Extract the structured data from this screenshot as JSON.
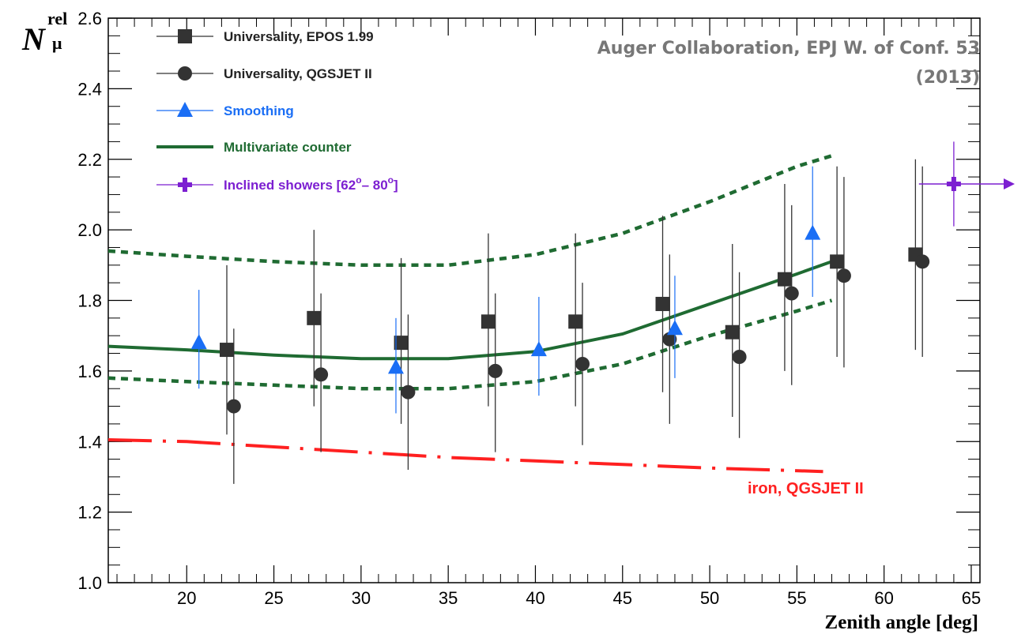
{
  "chart_data": {
    "type": "scatter",
    "title": "",
    "xlabel": "Zenith angle [deg]",
    "ylabel_main": "N",
    "ylabel_sup": "rel",
    "ylabel_sub": "μ",
    "xlim": [
      15.5,
      65.5
    ],
    "ylim": [
      1.0,
      2.6
    ],
    "x_ticks": [
      20,
      25,
      30,
      35,
      40,
      45,
      50,
      55,
      60,
      65
    ],
    "y_ticks": [
      1.0,
      1.2,
      1.4,
      1.6,
      1.8,
      2.0,
      2.2,
      2.4,
      2.6
    ],
    "grid": false,
    "legend_position": "top-left",
    "credit": [
      "Auger Collaboration, EPJ W. of Conf. 53",
      "(2013)"
    ],
    "annotations": [
      {
        "text": "iron, QGSJET II",
        "x": 55,
        "y": 1.29,
        "color": "#ff2020"
      }
    ],
    "series": [
      {
        "name": "Universality, EPOS 1.99",
        "marker": "square",
        "color": "#333333",
        "points": [
          {
            "x": 22.3,
            "y": 1.66,
            "lo": 1.42,
            "hi": 1.9
          },
          {
            "x": 27.3,
            "y": 1.75,
            "lo": 1.5,
            "hi": 2.0
          },
          {
            "x": 32.3,
            "y": 1.68,
            "lo": 1.45,
            "hi": 1.92
          },
          {
            "x": 37.3,
            "y": 1.74,
            "lo": 1.5,
            "hi": 1.99
          },
          {
            "x": 42.3,
            "y": 1.74,
            "lo": 1.5,
            "hi": 1.99
          },
          {
            "x": 47.3,
            "y": 1.79,
            "lo": 1.54,
            "hi": 2.04
          },
          {
            "x": 51.3,
            "y": 1.71,
            "lo": 1.47,
            "hi": 1.96
          },
          {
            "x": 54.3,
            "y": 1.86,
            "lo": 1.6,
            "hi": 2.13
          },
          {
            "x": 57.3,
            "y": 1.91,
            "lo": 1.64,
            "hi": 2.18
          },
          {
            "x": 61.8,
            "y": 1.93,
            "lo": 1.66,
            "hi": 2.2
          }
        ]
      },
      {
        "name": "Universality, QGSJET II",
        "marker": "circle",
        "color": "#333333",
        "points": [
          {
            "x": 22.7,
            "y": 1.5,
            "lo": 1.28,
            "hi": 1.72
          },
          {
            "x": 27.7,
            "y": 1.59,
            "lo": 1.37,
            "hi": 1.82
          },
          {
            "x": 32.7,
            "y": 1.54,
            "lo": 1.32,
            "hi": 1.76
          },
          {
            "x": 37.7,
            "y": 1.6,
            "lo": 1.37,
            "hi": 1.82
          },
          {
            "x": 42.7,
            "y": 1.62,
            "lo": 1.39,
            "hi": 1.85
          },
          {
            "x": 47.7,
            "y": 1.69,
            "lo": 1.45,
            "hi": 1.93
          },
          {
            "x": 51.7,
            "y": 1.64,
            "lo": 1.41,
            "hi": 1.88
          },
          {
            "x": 54.7,
            "y": 1.82,
            "lo": 1.56,
            "hi": 2.07
          },
          {
            "x": 57.7,
            "y": 1.87,
            "lo": 1.61,
            "hi": 2.15
          },
          {
            "x": 62.2,
            "y": 1.91,
            "lo": 1.64,
            "hi": 2.18
          }
        ]
      },
      {
        "name": "Smoothing",
        "marker": "triangle",
        "color": "#1a6ef5",
        "points": [
          {
            "x": 20.7,
            "y": 1.68,
            "lo": 1.55,
            "hi": 1.83
          },
          {
            "x": 32.0,
            "y": 1.61,
            "lo": 1.48,
            "hi": 1.75
          },
          {
            "x": 40.2,
            "y": 1.66,
            "lo": 1.53,
            "hi": 1.81
          },
          {
            "x": 48.0,
            "y": 1.72,
            "lo": 1.58,
            "hi": 1.87
          },
          {
            "x": 55.9,
            "y": 1.99,
            "lo": 1.81,
            "hi": 2.18
          }
        ]
      },
      {
        "name": "Multivariate counter",
        "marker": "line",
        "color": "#1f6b32",
        "x": [
          15.5,
          20,
          25,
          30,
          35,
          40,
          45,
          50,
          55,
          57
        ],
        "y": [
          1.67,
          1.66,
          1.645,
          1.635,
          1.635,
          1.655,
          1.705,
          1.79,
          1.875,
          1.91
        ],
        "band_upper": [
          1.94,
          1.925,
          1.91,
          1.9,
          1.9,
          1.93,
          1.99,
          2.08,
          2.18,
          2.21
        ],
        "band_lower": [
          1.58,
          1.57,
          1.56,
          1.55,
          1.55,
          1.57,
          1.62,
          1.7,
          1.77,
          1.8
        ]
      },
      {
        "name": "Inclined showers [62°– 80°]",
        "name_parts": [
          "Inclined showers [62",
          "o",
          "– 80",
          "o",
          "]"
        ],
        "marker": "cross",
        "color": "#7c1fd1",
        "points": [
          {
            "x": 64.0,
            "y": 2.13,
            "lo": 2.01,
            "hi": 2.25,
            "xlo": 62.0,
            "arrow": true
          }
        ]
      },
      {
        "name": "iron, QGSJET II",
        "marker": "dashdot",
        "color": "#ff2020",
        "x": [
          15.5,
          20,
          25,
          30,
          35,
          40,
          45,
          50,
          56.5
        ],
        "y": [
          1.405,
          1.4,
          1.385,
          1.37,
          1.355,
          1.345,
          1.335,
          1.325,
          1.315
        ]
      }
    ]
  }
}
